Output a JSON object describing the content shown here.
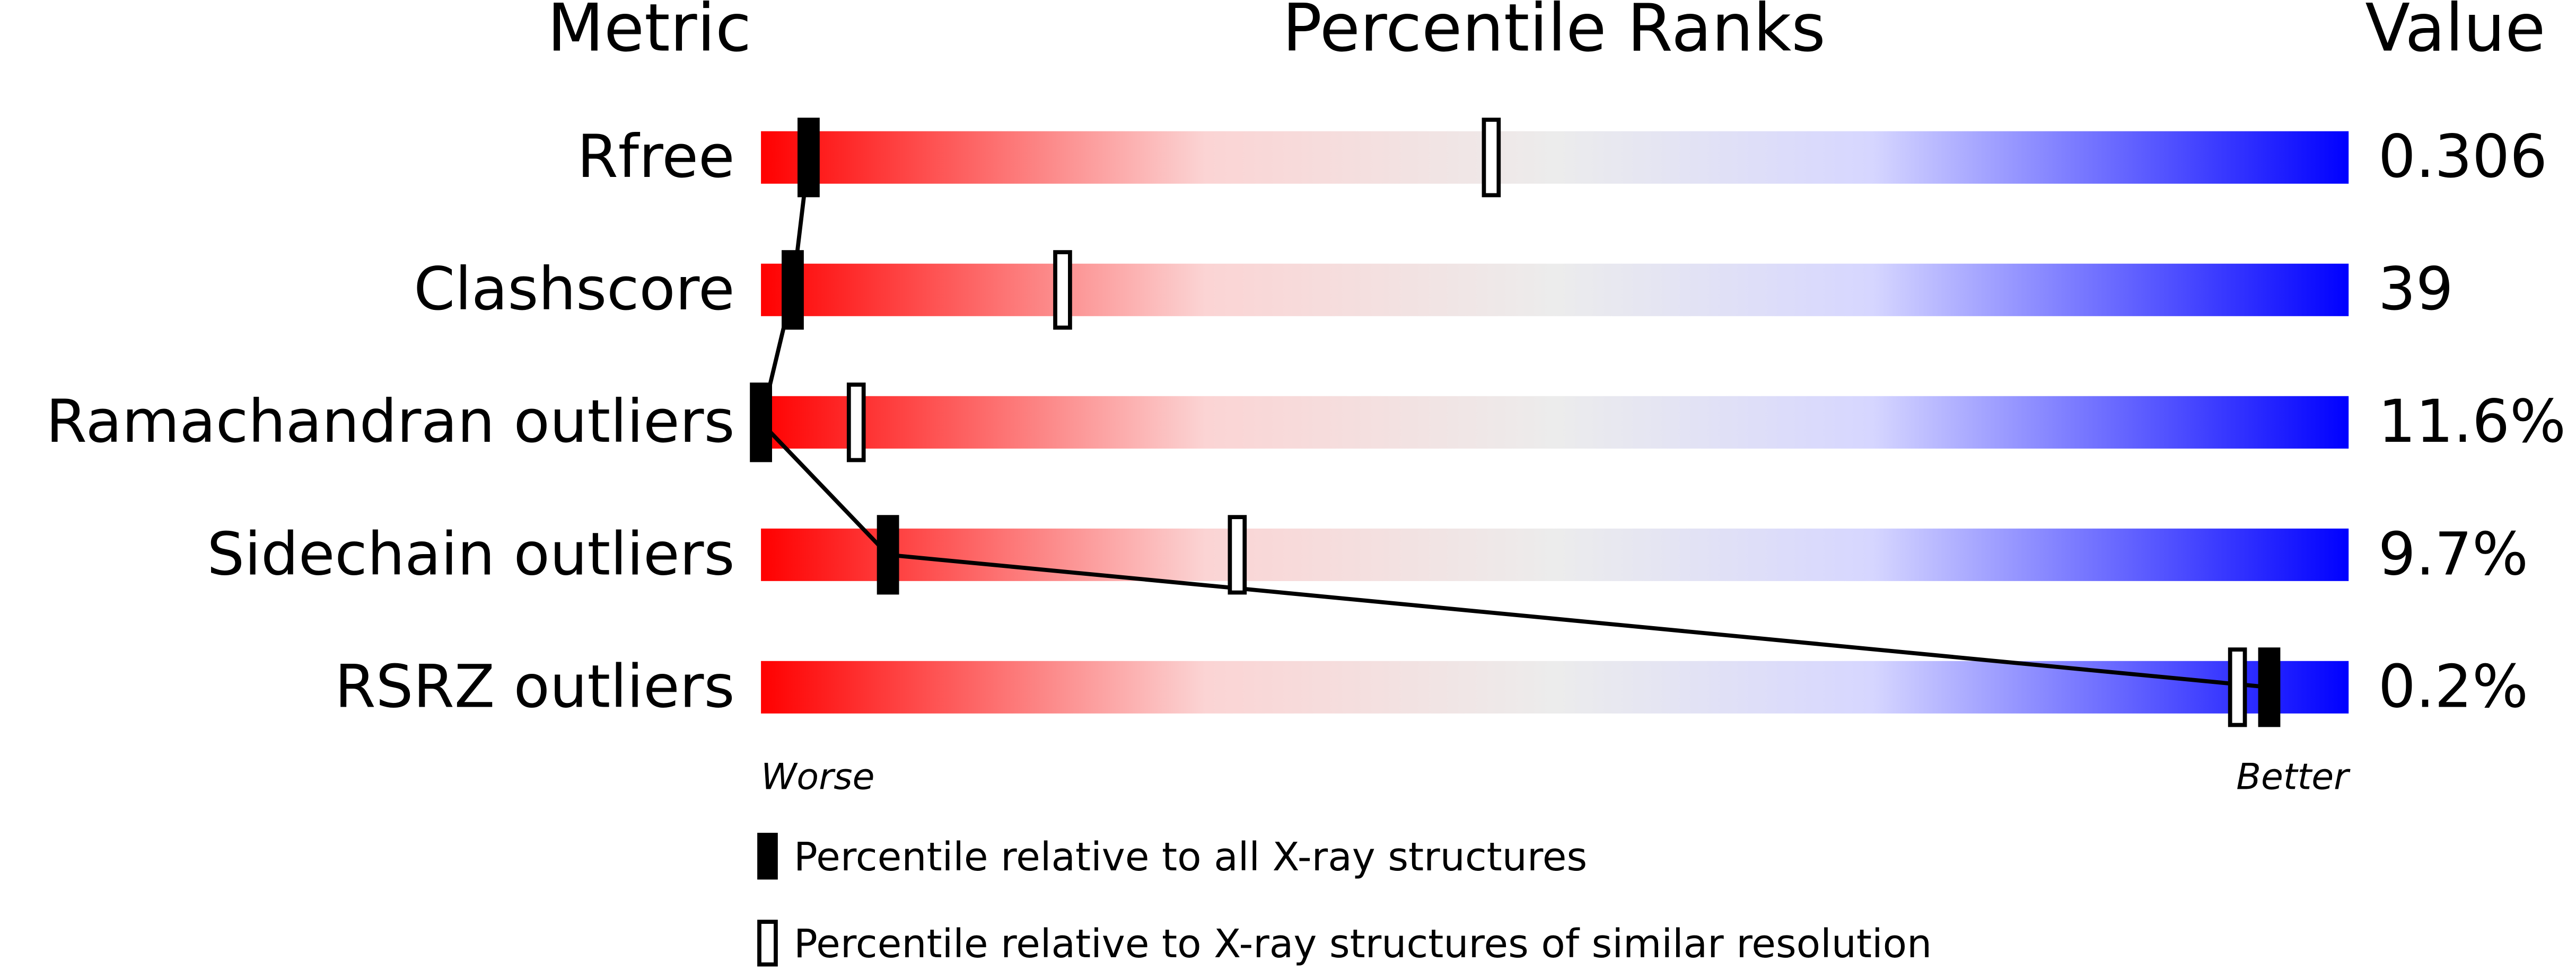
{
  "chart_data": {
    "type": "percentile",
    "headers": {
      "metric": "Metric",
      "percentile": "Percentile Ranks",
      "value": "Value"
    },
    "categories": [
      "Rfree",
      "Clashscore",
      "Ramachandran outliers",
      "Sidechain outliers",
      "RSRZ outliers"
    ],
    "values": [
      0.306,
      39,
      11.6,
      9.7,
      0.2
    ],
    "value_labels": [
      "0.306",
      "39",
      "11.6%",
      "9.7%",
      "0.2%"
    ],
    "series": [
      {
        "name": "Percentile relative to all X-ray structures",
        "color": "#000000",
        "fill": "#000000",
        "values": [
          3,
          2,
          0,
          8,
          95
        ]
      },
      {
        "name": "Percentile relative to X-ray structures of similar resolution",
        "color": "#000000",
        "fill": "#ffffff",
        "values": [
          46,
          19,
          6,
          30,
          93
        ]
      }
    ],
    "xlim": [
      0,
      100
    ],
    "axis_labels": {
      "low": "Worse",
      "high": "Better"
    }
  }
}
